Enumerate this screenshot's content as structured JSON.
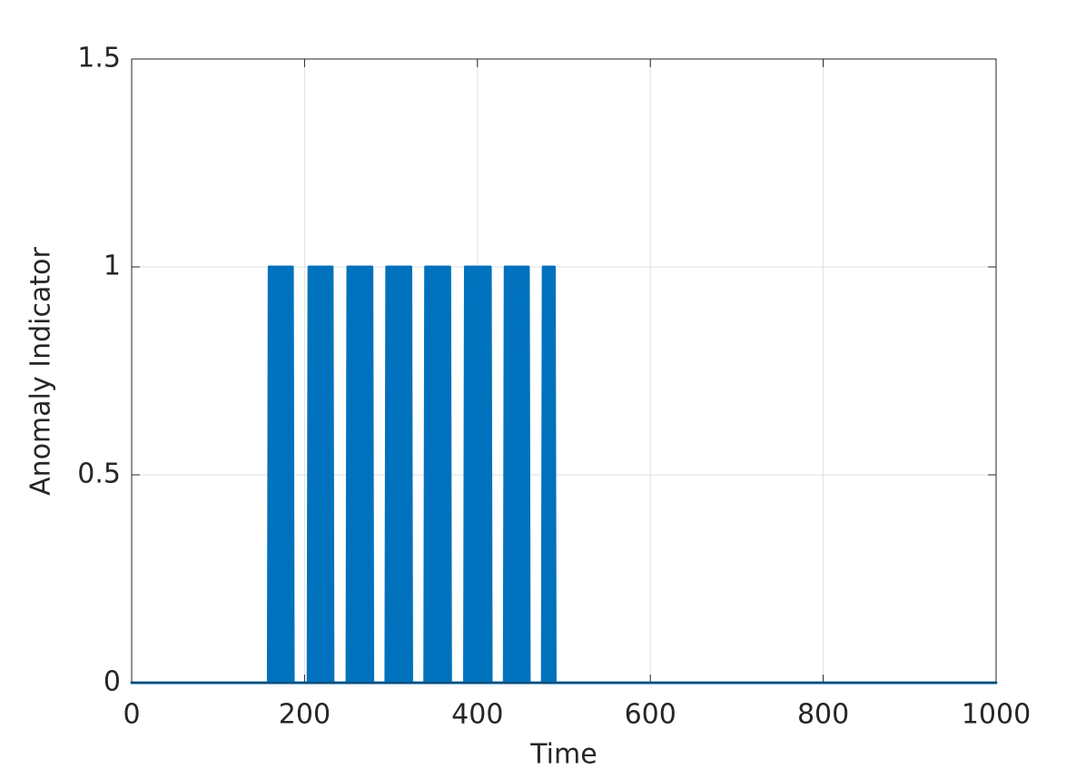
{
  "chart_data": {
    "type": "area",
    "x_label": "Time",
    "y_label": "Anomaly Indicator",
    "x": [
      0,
      158,
      159,
      186,
      187,
      204,
      205,
      232,
      233,
      249,
      250,
      278,
      279,
      294,
      295,
      323,
      324,
      339,
      340,
      368,
      369,
      385,
      386,
      415,
      416,
      431,
      432,
      459,
      460,
      475,
      476,
      489,
      490,
      1000
    ],
    "series": [
      {
        "color": "#0072bd",
        "values": [
          0,
          0,
          1,
          1,
          0,
          0,
          1,
          1,
          0,
          0,
          1,
          1,
          0,
          0,
          1,
          1,
          0,
          0,
          1,
          1,
          0,
          0,
          1,
          1,
          0,
          0,
          1,
          1,
          0,
          0,
          1,
          1,
          0,
          0
        ]
      }
    ],
    "xlim": [
      0,
      1000
    ],
    "xticks": [
      0,
      200,
      400,
      600,
      800,
      1000
    ],
    "ylim": [
      0,
      1.5
    ],
    "yticks": [
      0,
      0.5,
      1,
      1.5
    ],
    "grid": true
  }
}
